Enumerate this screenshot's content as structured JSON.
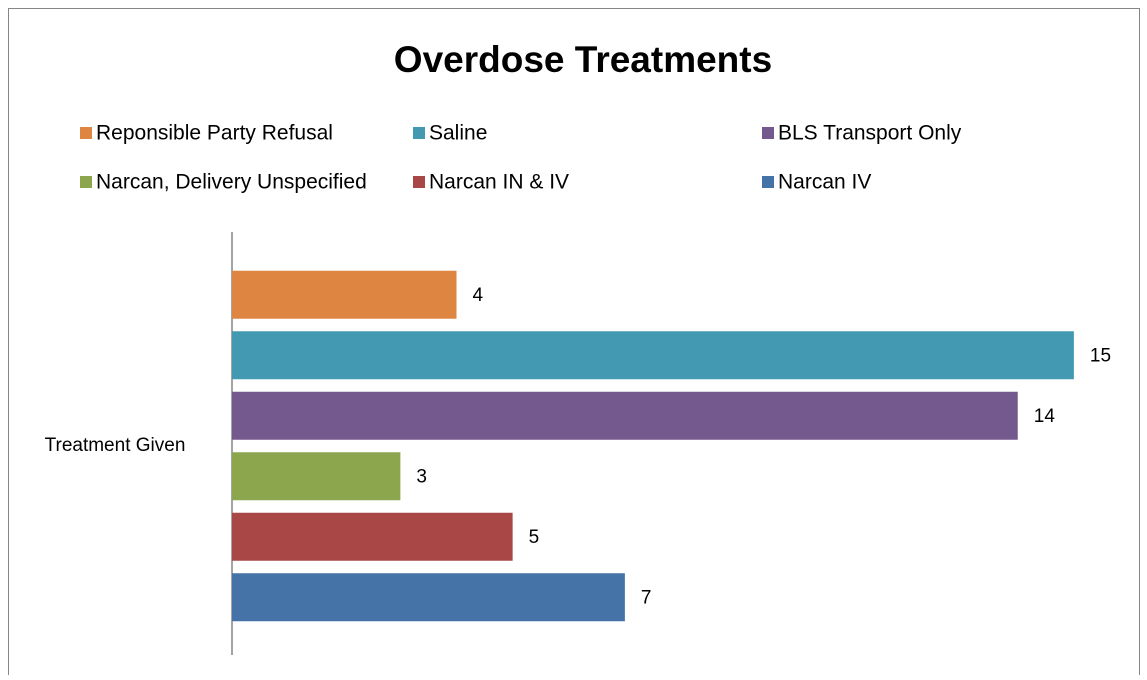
{
  "chart_data": {
    "type": "hbar",
    "title": "Overdose Treatments",
    "categories": [
      "Treatment Given"
    ],
    "series": [
      {
        "name": "Reponsible Party Refusal",
        "color": "#dd8541",
        "values": [
          4
        ]
      },
      {
        "name": "Saline",
        "color": "#4299b1",
        "values": [
          15
        ]
      },
      {
        "name": "BLS Transport Only",
        "color": "#73598e",
        "values": [
          14
        ]
      },
      {
        "name": "Narcan, Delivery Unspecified",
        "color": "#8ba64d",
        "values": [
          3
        ]
      },
      {
        "name": "Narcan IN & IV",
        "color": "#a94646",
        "values": [
          5
        ]
      },
      {
        "name": "Narcan IV",
        "color": "#4572a7",
        "values": [
          7
        ]
      }
    ],
    "xlim": [
      0,
      16
    ],
    "legend": "top",
    "data_labels": true
  }
}
